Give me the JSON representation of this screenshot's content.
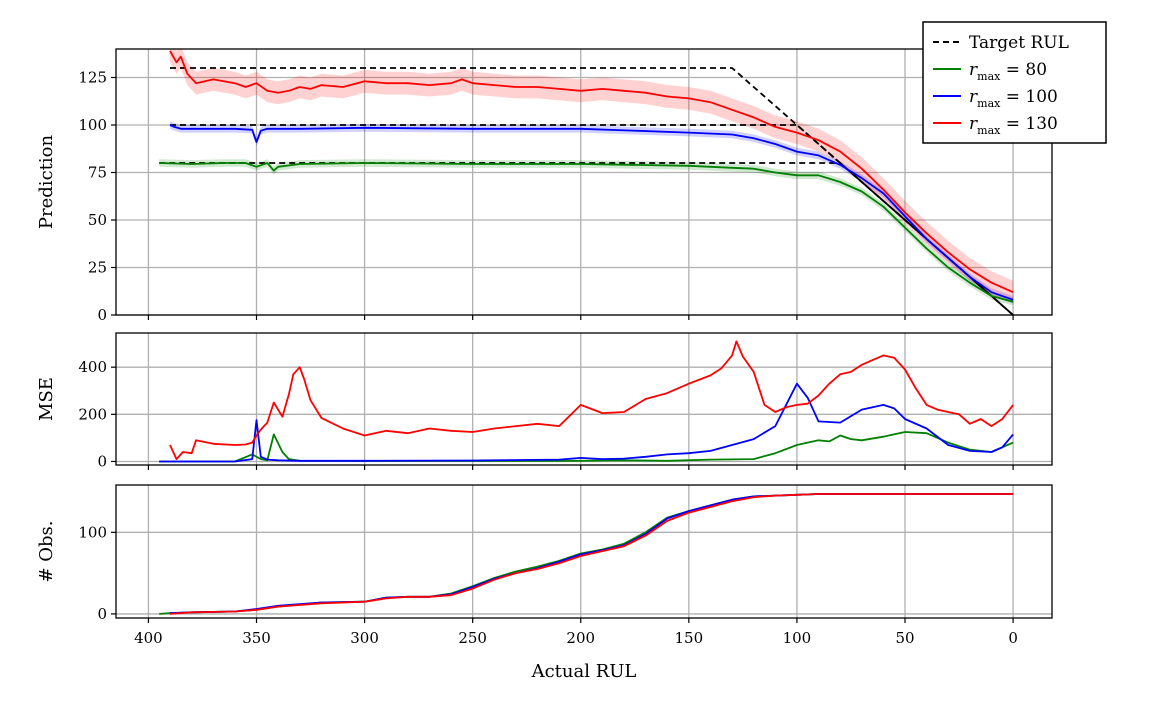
{
  "chart_data": [
    {
      "type": "line",
      "ylabel": "Prediction",
      "xlabel": "",
      "xlim": [
        415,
        -18
      ],
      "ylim": [
        0,
        140
      ],
      "x_ticks": [
        400,
        350,
        300,
        250,
        200,
        150,
        100,
        50,
        0
      ],
      "y_ticks": [
        0,
        25,
        50,
        75,
        100,
        125
      ],
      "grid": true,
      "legend": {
        "position": "top-right",
        "entries": [
          {
            "label": "Target RUL",
            "color": "#000000",
            "style": "dashed"
          },
          {
            "label_main": "r",
            "label_sub": "max",
            "label_rest": " = 80",
            "color": "#008000",
            "style": "solid"
          },
          {
            "label_main": "r",
            "label_sub": "max",
            "label_rest": " = 100",
            "color": "#0000ff",
            "style": "solid"
          },
          {
            "label_main": "r",
            "label_sub": "max",
            "label_rest": " = 130",
            "color": "#ff0000",
            "style": "solid"
          }
        ]
      },
      "series": [
        {
          "name": "Target RUL (80)",
          "color": "#000000",
          "style": "dashed",
          "x": [
            395,
            80,
            0
          ],
          "y": [
            80,
            80,
            0
          ]
        },
        {
          "name": "Target RUL (100)",
          "color": "#000000",
          "style": "dashed",
          "x": [
            390,
            100,
            0
          ],
          "y": [
            100,
            100,
            0
          ]
        },
        {
          "name": "Target RUL (130)",
          "color": "#000000",
          "style": "dashed",
          "x": [
            390,
            130,
            0
          ],
          "y": [
            130,
            130,
            0
          ]
        },
        {
          "name": "r_max = 80",
          "color": "#008000",
          "style": "solid",
          "band": 2,
          "x": [
            395,
            380,
            365,
            355,
            350,
            345,
            342,
            340,
            330,
            300,
            250,
            200,
            150,
            130,
            120,
            110,
            100,
            90,
            80,
            70,
            60,
            50,
            40,
            30,
            20,
            10,
            0
          ],
          "y": [
            80,
            79.5,
            80,
            80,
            78,
            80,
            76,
            78,
            79.5,
            80,
            79.5,
            79.5,
            78.5,
            77.5,
            77,
            75,
            73.5,
            73.5,
            70,
            65,
            57,
            46,
            35,
            25,
            17,
            10,
            7
          ]
        },
        {
          "name": "r_max = 100",
          "color": "#0000ff",
          "style": "solid",
          "band": 2,
          "x": [
            390,
            388,
            385,
            360,
            352,
            350,
            348,
            345,
            330,
            300,
            250,
            200,
            150,
            130,
            120,
            110,
            100,
            90,
            80,
            70,
            60,
            50,
            40,
            30,
            20,
            10,
            0
          ],
          "y": [
            100,
            99,
            98,
            98,
            97.5,
            91,
            97,
            98,
            98,
            98.5,
            98,
            98,
            96,
            95,
            93,
            90,
            86,
            84,
            79,
            72,
            64,
            52,
            40,
            30,
            20,
            12,
            8
          ]
        },
        {
          "name": "r_max = 130",
          "color": "#ff0000",
          "style": "solid",
          "band": 6,
          "x": [
            390,
            387,
            385,
            382,
            378,
            370,
            360,
            355,
            350,
            345,
            340,
            335,
            330,
            325,
            320,
            310,
            300,
            290,
            280,
            270,
            260,
            255,
            250,
            240,
            230,
            220,
            210,
            200,
            190,
            180,
            170,
            160,
            150,
            140,
            130,
            120,
            110,
            100,
            90,
            80,
            70,
            60,
            50,
            40,
            30,
            20,
            10,
            0
          ],
          "y": [
            139,
            133,
            136,
            127,
            122,
            124,
            122,
            120,
            122,
            118,
            117,
            118,
            120,
            119,
            121,
            120,
            123,
            122,
            122,
            121,
            122,
            124,
            122,
            121,
            120,
            120,
            119,
            118,
            119,
            118,
            117,
            115,
            114,
            112,
            108,
            104,
            99,
            96,
            92,
            86,
            77,
            66,
            54,
            43,
            33,
            24,
            17,
            12
          ]
        }
      ]
    },
    {
      "type": "line",
      "ylabel": "MSE",
      "xlabel": "",
      "xlim": [
        415,
        -18
      ],
      "ylim": [
        -15,
        545
      ],
      "x_ticks": [
        400,
        350,
        300,
        250,
        200,
        150,
        100,
        50,
        0
      ],
      "y_ticks": [
        0,
        200,
        400
      ],
      "grid": true,
      "series": [
        {
          "name": "r_max = 80",
          "color": "#008000",
          "style": "solid",
          "x": [
            395,
            360,
            352,
            348,
            345,
            342,
            338,
            335,
            330,
            300,
            250,
            200,
            180,
            160,
            140,
            120,
            110,
            100,
            90,
            85,
            80,
            75,
            70,
            60,
            50,
            40,
            30,
            20,
            10,
            0
          ],
          "y": [
            0,
            0,
            30,
            10,
            5,
            115,
            40,
            10,
            3,
            2,
            2,
            3,
            5,
            3,
            8,
            10,
            35,
            70,
            90,
            85,
            110,
            95,
            90,
            105,
            125,
            120,
            80,
            50,
            40,
            80
          ]
        },
        {
          "name": "r_max = 100",
          "color": "#0000ff",
          "style": "solid",
          "x": [
            395,
            360,
            352,
            350,
            348,
            345,
            340,
            330,
            300,
            250,
            210,
            200,
            190,
            180,
            170,
            160,
            150,
            140,
            130,
            120,
            110,
            100,
            95,
            90,
            80,
            70,
            60,
            55,
            50,
            40,
            30,
            20,
            10,
            5,
            0
          ],
          "y": [
            0,
            0,
            10,
            175,
            20,
            8,
            5,
            3,
            3,
            4,
            8,
            15,
            10,
            12,
            20,
            30,
            35,
            45,
            70,
            95,
            150,
            330,
            270,
            170,
            165,
            220,
            240,
            225,
            180,
            140,
            70,
            45,
            40,
            60,
            115
          ]
        },
        {
          "name": "r_max = 130",
          "color": "#ff0000",
          "style": "solid",
          "x": [
            390,
            387,
            384,
            380,
            378,
            370,
            360,
            355,
            352,
            350,
            348,
            345,
            342,
            338,
            335,
            333,
            330,
            328,
            325,
            320,
            310,
            300,
            290,
            280,
            270,
            260,
            250,
            240,
            220,
            210,
            200,
            190,
            180,
            170,
            160,
            150,
            140,
            135,
            130,
            128,
            125,
            120,
            115,
            110,
            105,
            100,
            95,
            90,
            85,
            80,
            75,
            70,
            65,
            60,
            55,
            50,
            45,
            40,
            35,
            30,
            25,
            20,
            15,
            10,
            5,
            0
          ],
          "y": [
            70,
            10,
            40,
            35,
            90,
            75,
            70,
            72,
            80,
            110,
            135,
            165,
            250,
            190,
            285,
            370,
            400,
            350,
            260,
            185,
            140,
            110,
            130,
            120,
            140,
            130,
            125,
            140,
            160,
            150,
            240,
            205,
            210,
            265,
            290,
            330,
            365,
            395,
            450,
            510,
            445,
            380,
            240,
            210,
            230,
            240,
            245,
            280,
            330,
            370,
            380,
            410,
            430,
            450,
            440,
            390,
            310,
            240,
            220,
            210,
            200,
            160,
            180,
            150,
            180,
            240
          ]
        }
      ]
    },
    {
      "type": "line",
      "ylabel": "# Obs.",
      "xlabel": "Actual RUL",
      "xlim": [
        415,
        -18
      ],
      "ylim": [
        -5,
        158
      ],
      "x_ticks": [
        400,
        350,
        300,
        250,
        200,
        150,
        100,
        50,
        0
      ],
      "y_ticks": [
        0,
        100
      ],
      "grid": true,
      "series": [
        {
          "name": "r_max = 80",
          "color": "#008000",
          "style": "solid",
          "x": [
            395,
            390,
            380,
            360,
            350,
            340,
            320,
            300,
            290,
            280,
            270,
            260,
            250,
            240,
            230,
            220,
            210,
            200,
            190,
            180,
            170,
            160,
            150,
            140,
            130,
            120,
            110,
            100,
            90,
            80,
            50,
            0
          ],
          "y": [
            0,
            1,
            2,
            3,
            5,
            9,
            14,
            15,
            20,
            21,
            21,
            25,
            34,
            44,
            52,
            58,
            65,
            74,
            79,
            86,
            100,
            118,
            126,
            133,
            140,
            144,
            145,
            146,
            147,
            147,
            147,
            147
          ]
        },
        {
          "name": "r_max = 100",
          "color": "#0000ff",
          "style": "solid",
          "x": [
            390,
            380,
            360,
            350,
            340,
            320,
            300,
            290,
            280,
            270,
            260,
            250,
            240,
            230,
            220,
            210,
            200,
            190,
            180,
            170,
            160,
            150,
            140,
            130,
            120,
            110,
            100,
            90,
            80,
            50,
            0
          ],
          "y": [
            1,
            2,
            3,
            6,
            10,
            14,
            15,
            20,
            21,
            21,
            24,
            33,
            43,
            50,
            56,
            64,
            73,
            78,
            84,
            98,
            117,
            126,
            133,
            140,
            144,
            145,
            146,
            147,
            147,
            147,
            147
          ]
        },
        {
          "name": "r_max = 130",
          "color": "#ff0000",
          "style": "solid",
          "x": [
            390,
            380,
            360,
            350,
            340,
            320,
            300,
            290,
            280,
            270,
            260,
            250,
            240,
            230,
            220,
            210,
            200,
            190,
            180,
            170,
            160,
            150,
            140,
            130,
            120,
            110,
            100,
            90,
            80,
            50,
            0
          ],
          "y": [
            0,
            2,
            3,
            5,
            9,
            13,
            15,
            19,
            21,
            21,
            23,
            31,
            42,
            50,
            55,
            62,
            71,
            77,
            83,
            96,
            114,
            124,
            131,
            138,
            143,
            145,
            146,
            147,
            147,
            147,
            147
          ]
        }
      ]
    }
  ]
}
